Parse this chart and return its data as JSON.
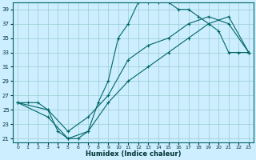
{
  "xlabel": "Humidex (Indice chaleur)",
  "bg_color": "#cceeff",
  "line_color": "#006666",
  "grid_color": "#99cccc",
  "xlim": [
    -0.5,
    23.5
  ],
  "ylim": [
    20.5,
    40
  ],
  "yticks": [
    21,
    23,
    25,
    27,
    29,
    31,
    33,
    35,
    37,
    39
  ],
  "xticks": [
    0,
    1,
    2,
    3,
    4,
    5,
    6,
    7,
    8,
    9,
    10,
    11,
    12,
    13,
    14,
    15,
    16,
    17,
    18,
    19,
    20,
    21,
    22,
    23
  ],
  "curve1_x": [
    0,
    1,
    2,
    3,
    4,
    5,
    6,
    7,
    8,
    9,
    10,
    11,
    12,
    13,
    14,
    15,
    16,
    17,
    18,
    19,
    20,
    21,
    22,
    23
  ],
  "curve1_y": [
    26,
    26,
    26,
    25,
    22,
    21,
    21,
    22,
    26,
    29,
    35,
    37,
    40,
    40,
    40,
    40,
    39,
    39,
    38,
    37,
    36,
    33,
    33,
    33
  ],
  "curve2_x": [
    0,
    3,
    5,
    7,
    9,
    11,
    13,
    15,
    17,
    19,
    21,
    23
  ],
  "curve2_y": [
    26,
    25,
    22,
    24,
    27,
    32,
    34,
    35,
    37,
    38,
    37,
    33
  ],
  "curve3_x": [
    0,
    3,
    5,
    7,
    9,
    11,
    13,
    15,
    17,
    19,
    21,
    23
  ],
  "curve3_y": [
    26,
    24,
    21,
    22,
    26,
    29,
    31,
    33,
    35,
    37,
    38,
    33
  ]
}
